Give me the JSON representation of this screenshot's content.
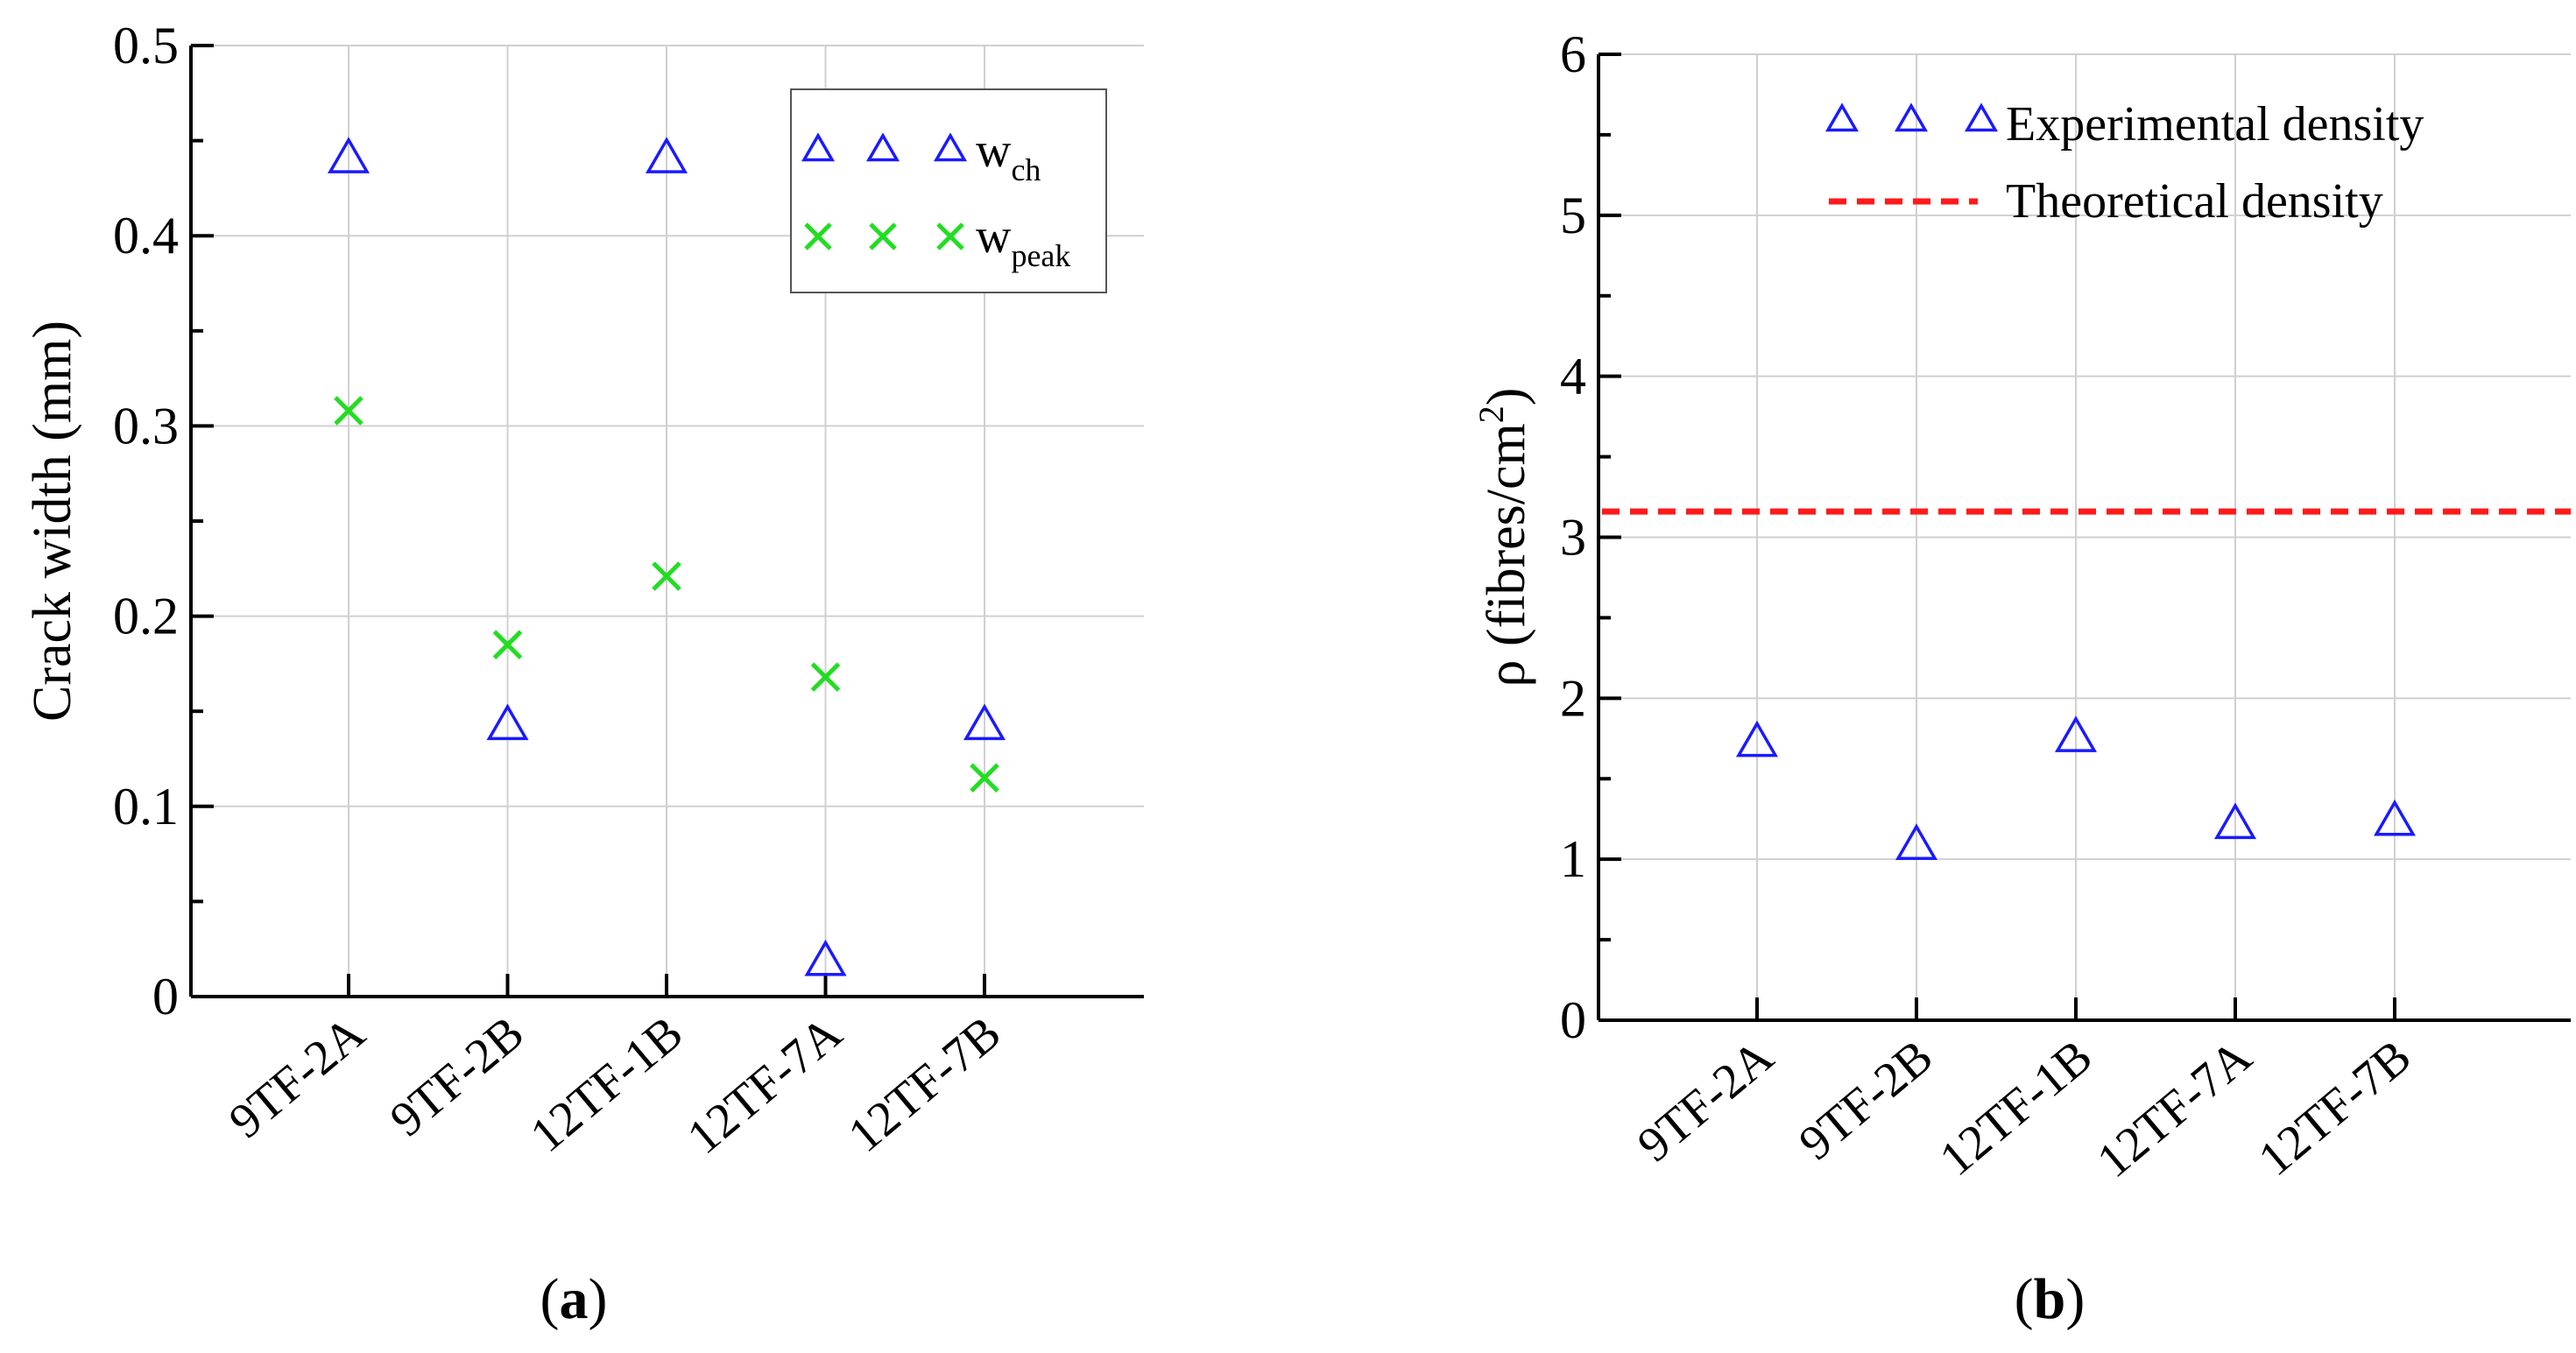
{
  "chart_data": [
    {
      "type": "scatter",
      "title": "",
      "panel_label": "a",
      "xlabel": "",
      "ylabel": "Crack width (mm)",
      "categories": [
        "9TF-2A",
        "9TF-2B",
        "12TF-1B",
        "12TF-7A",
        "12TF-7B"
      ],
      "ylim": [
        0,
        0.5
      ],
      "yticks": [
        "0",
        "0.1",
        "0.2",
        "0.3",
        "0.4",
        "0.5"
      ],
      "grid": true,
      "legend_position": "top-right",
      "series": [
        {
          "name": "w",
          "subscript": "ch",
          "marker": "triangle",
          "color": "#1a1aff",
          "values": [
            0.44,
            0.142,
            0.44,
            0.018,
            0.142
          ]
        },
        {
          "name": "w",
          "subscript": "peak",
          "marker": "x",
          "color": "#22dd22",
          "values": [
            0.308,
            0.185,
            0.221,
            0.168,
            0.115
          ]
        }
      ]
    },
    {
      "type": "scatter",
      "title": "",
      "panel_label": "b",
      "xlabel": "",
      "ylabel": "ρ (fibres/cm",
      "ylabel_sup": "2",
      "ylabel_end": ")",
      "categories": [
        "9TF-2A",
        "9TF-2B",
        "12TF-1B",
        "12TF-7A",
        "12TF-7B"
      ],
      "ylim": [
        0,
        6
      ],
      "yticks": [
        "0",
        "1",
        "2",
        "3",
        "4",
        "5",
        "6"
      ],
      "grid": true,
      "legend_position": "top-right",
      "series": [
        {
          "name": "Experimental density",
          "marker": "triangle",
          "color": "#1a1aff",
          "values": [
            1.72,
            1.08,
            1.75,
            1.21,
            1.23
          ]
        },
        {
          "name": "Theoretical density",
          "marker": "dashed-line",
          "color": "#ff1a1a",
          "value": 3.16
        }
      ]
    }
  ]
}
